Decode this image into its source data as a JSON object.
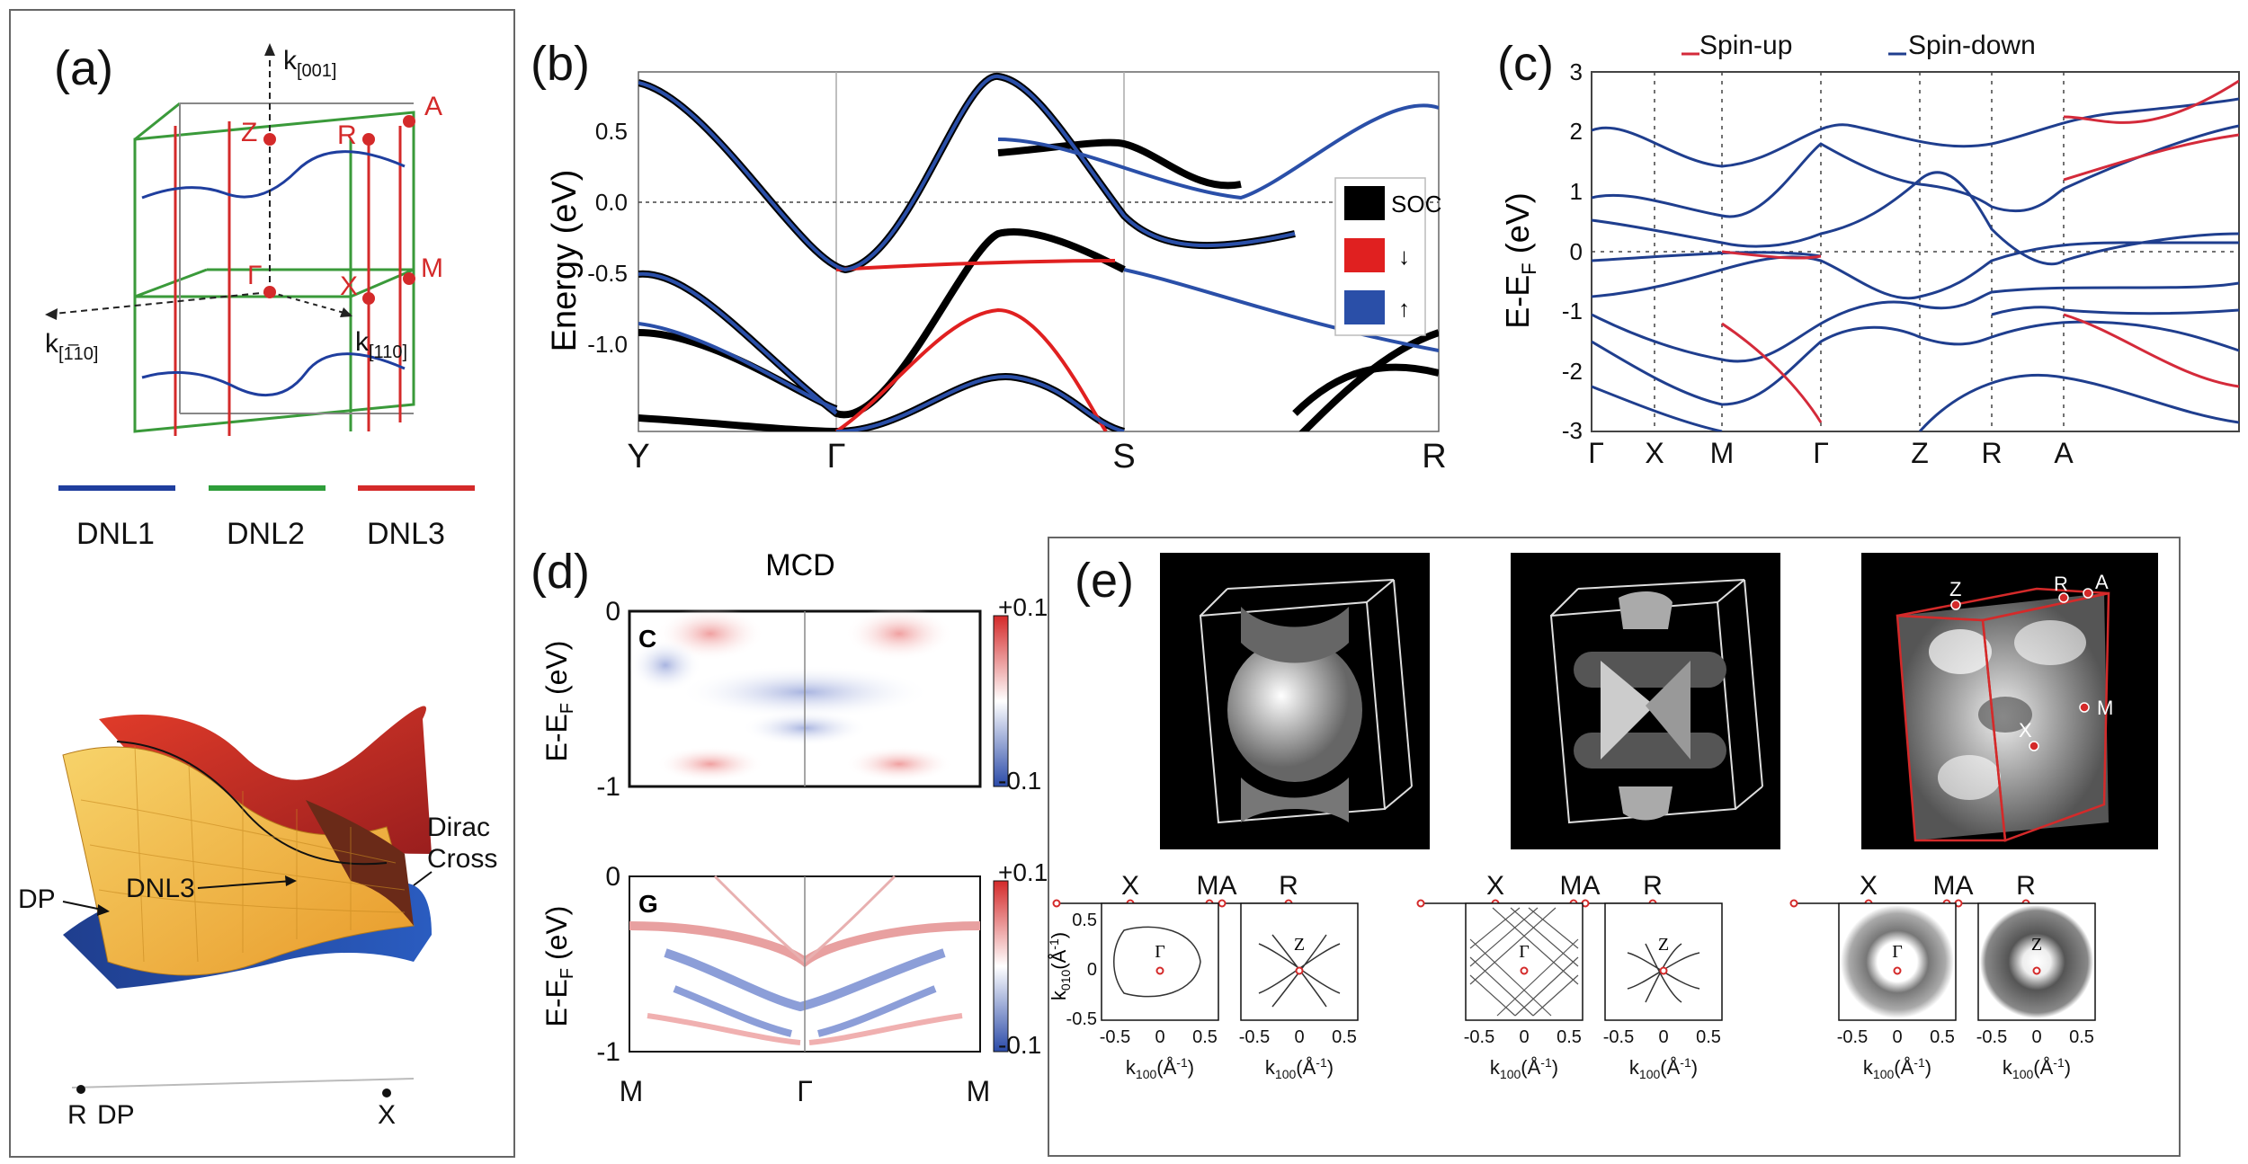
{
  "panel_a": {
    "label": "(a)",
    "axis_z": "k",
    "axis_z_sub": "[001]",
    "axis_y": "k",
    "axis_y_sub": "[110]",
    "axis_x": "k",
    "axis_x_sub": "[1̅10]",
    "points": [
      "Z",
      "R",
      "A",
      "Γ",
      "X",
      "M"
    ],
    "legend": [
      {
        "label": "DNL1",
        "color": "#1f3e9e"
      },
      {
        "label": "DNL2",
        "color": "#2e9e3a"
      },
      {
        "label": "DNL3",
        "color": "#d42a2a"
      }
    ],
    "surface_labels": {
      "dnl3": "DNL3",
      "dp": "DP",
      "dirac1": "Dirac",
      "dirac2": "Cross",
      "r": "R",
      "dp2": "DP",
      "x": "X"
    }
  },
  "panel_b": {
    "label": "(b)",
    "ylabel": "Energy (eV)",
    "yticks": [
      "0.5",
      "0.0",
      "-0.5",
      "-1.0"
    ],
    "xticks": [
      "Y",
      "Γ",
      "S",
      "R"
    ],
    "legend": [
      {
        "label": "SOC",
        "color": "#000000"
      },
      {
        "label": "↓",
        "color": "#e02020"
      },
      {
        "label": "↑",
        "color": "#2a4fa8"
      }
    ]
  },
  "panel_c": {
    "label": "(c)",
    "ylabel_main": "E-E",
    "ylabel_sub": "F",
    "ylabel_unit": " (eV)",
    "yticks": [
      "3",
      "2",
      "1",
      "0",
      "-1",
      "-2",
      "-3"
    ],
    "xticks": [
      "Γ",
      "X",
      "M",
      "Γ",
      "Z",
      "R",
      "A"
    ],
    "legend": [
      {
        "label": "Spin-up",
        "color": "#d42a3a"
      },
      {
        "label": "Spin-down",
        "color": "#1f3e8e"
      }
    ]
  },
  "panel_d": {
    "label": "(d)",
    "title": "MCD",
    "top_letter": "C",
    "bottom_letter": "G",
    "ylabel_main": "E-E",
    "ylabel_sub": "F",
    "ylabel_unit": " (eV)",
    "yticks_top": [
      "0",
      "-1"
    ],
    "yticks_bottom": [
      "0",
      "-1"
    ],
    "cbar_top": "+0.1",
    "cbar_bottom": "-0.1",
    "xticks": [
      "M",
      "Γ",
      "M"
    ]
  },
  "panel_e": {
    "label": "(e)",
    "cube_labels": {
      "z": "Z",
      "r": "R",
      "a": "A",
      "m": "M",
      "x": "X"
    },
    "top_labels": {
      "x": "X",
      "ma": "MA",
      "r": "R"
    },
    "xlabel_main": "k",
    "xlabel_sub": "100",
    "xlabel_unit": "(Å",
    "ylabel_main": "k",
    "ylabel_sub": "010",
    "ylabel_unit": "(Å",
    "ticks": [
      "-0.5",
      "0",
      "0.5"
    ],
    "yticks": [
      "0.5",
      "0",
      "-0.5"
    ],
    "gamma": "Γ",
    "zed": "Z"
  }
}
